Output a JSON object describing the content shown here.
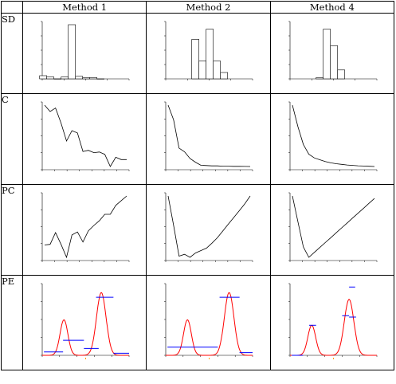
{
  "columns": [
    "",
    "Method 1",
    "Method 2",
    "Method 4"
  ],
  "rows": [
    "SD",
    "C",
    "PC",
    "PE"
  ],
  "colors": {
    "axis": "#000000",
    "curve": "#ff0000",
    "segment": "#0000ff",
    "tick_accent": "#ff9900"
  },
  "chart_data": [
    {
      "row": "SD",
      "col": "Method 1",
      "type": "bar",
      "categories": [
        "1",
        "2",
        "3",
        "4",
        "5",
        "6",
        "7",
        "8",
        "9"
      ],
      "values": [
        5,
        3,
        0,
        3,
        85,
        4,
        2,
        2,
        0
      ]
    },
    {
      "row": "SD",
      "col": "Method 2",
      "type": "bar",
      "categories": [
        "1",
        "2",
        "3",
        "4",
        "5"
      ],
      "values": [
        62,
        28,
        78,
        28,
        10
      ]
    },
    {
      "row": "SD",
      "col": "Method 4",
      "type": "bar",
      "categories": [
        "1",
        "2",
        "3",
        "4"
      ],
      "values": [
        2,
        78,
        52,
        14
      ]
    },
    {
      "row": "C",
      "col": "Method 1",
      "type": "line",
      "x": [
        0,
        1,
        2,
        3,
        4,
        5,
        6,
        7,
        8,
        9,
        10,
        11,
        12,
        13,
        14,
        15
      ],
      "values": [
        9.4,
        8.3,
        8.9,
        6.3,
        3.2,
        5.0,
        4.6,
        1.4,
        1.6,
        1.2,
        1.3,
        0.9,
        -1.2,
        0.4,
        0.0,
        0.0
      ]
    },
    {
      "row": "C",
      "col": "Method 2",
      "type": "line",
      "x": [
        0,
        1,
        2,
        3,
        4,
        5,
        6,
        7,
        8,
        9,
        10,
        11,
        12,
        13,
        14,
        15
      ],
      "values": [
        10.0,
        7.6,
        3.0,
        2.4,
        1.3,
        0.7,
        0.2,
        0.15,
        0.1,
        0.1,
        0.05,
        0.05,
        0.02,
        0.02,
        0.01,
        0.0
      ]
    },
    {
      "row": "C",
      "col": "Method 4",
      "type": "line",
      "x": [
        0,
        1,
        2,
        3,
        4,
        5,
        6,
        7,
        8,
        9,
        10,
        11,
        12,
        13,
        14,
        15
      ],
      "values": [
        10.0,
        6.5,
        3.6,
        2.0,
        1.4,
        1.1,
        0.8,
        0.6,
        0.45,
        0.35,
        0.25,
        0.18,
        0.12,
        0.08,
        0.04,
        0.0
      ]
    },
    {
      "row": "PC",
      "col": "Method 1",
      "type": "line",
      "x": [
        0,
        1,
        2,
        3,
        4,
        5,
        6,
        7,
        8,
        9,
        10,
        11,
        12,
        13,
        14,
        15
      ],
      "values": [
        2.1,
        2.2,
        4.2,
        2.2,
        0.0,
        3.8,
        4.3,
        2.6,
        4.5,
        5.4,
        6.2,
        7.3,
        7.3,
        8.8,
        9.6,
        10.4
      ]
    },
    {
      "row": "PC",
      "col": "Method 2",
      "type": "line",
      "x": [
        0,
        1,
        2,
        3,
        4,
        5,
        6,
        7,
        8,
        9,
        10,
        11,
        12,
        13,
        14,
        15
      ],
      "values": [
        10.0,
        5.2,
        0.2,
        0.5,
        0.0,
        0.7,
        1.1,
        1.5,
        2.3,
        3.2,
        4.3,
        5.4,
        6.5,
        7.6,
        8.7,
        10.0
      ]
    },
    {
      "row": "PC",
      "col": "Method 4",
      "type": "line",
      "x": [
        0,
        1,
        2,
        3,
        4,
        5,
        6,
        7,
        8,
        9,
        10,
        11,
        12,
        13,
        14,
        15
      ],
      "values": [
        10.0,
        5.8,
        1.7,
        0.0,
        0.8,
        1.6,
        2.4,
        3.2,
        4.0,
        4.8,
        5.6,
        6.4,
        7.2,
        8.0,
        8.8,
        9.6
      ]
    },
    {
      "row": "PE",
      "col": "Method 1",
      "type": "line",
      "curve": {
        "peaks": [
          {
            "mu": 0.25,
            "sigma": 0.045,
            "height": 0.52
          },
          {
            "mu": 0.68,
            "sigma": 0.055,
            "height": 0.92
          }
        ]
      },
      "segments": [
        [
          0.02,
          0.24,
          0.05
        ],
        [
          0.24,
          0.48,
          0.22
        ],
        [
          0.48,
          0.65,
          0.1
        ],
        [
          0.62,
          0.82,
          0.85
        ],
        [
          0.82,
          1.0,
          0.03
        ]
      ]
    },
    {
      "row": "PE",
      "col": "Method 2",
      "type": "line",
      "curve": {
        "peaks": [
          {
            "mu": 0.25,
            "sigma": 0.045,
            "height": 0.52
          },
          {
            "mu": 0.73,
            "sigma": 0.055,
            "height": 0.92
          }
        ]
      },
      "segments": [
        [
          0.02,
          0.6,
          0.12
        ],
        [
          0.62,
          0.85,
          0.85
        ],
        [
          0.85,
          1.0,
          0.04
        ]
      ]
    },
    {
      "row": "PE",
      "col": "Method 4",
      "type": "line",
      "curve": {
        "peaks": [
          {
            "mu": 0.25,
            "sigma": 0.045,
            "height": 0.44
          },
          {
            "mu": 0.68,
            "sigma": 0.055,
            "height": 0.82
          }
        ]
      },
      "segments": [
        [
          0.22,
          0.3,
          0.44
        ],
        [
          0.02,
          0.15,
          0.0
        ],
        [
          0.6,
          0.68,
          0.58
        ],
        [
          0.68,
          0.76,
          0.56
        ],
        [
          0.68,
          0.75,
          1.0
        ]
      ]
    }
  ]
}
